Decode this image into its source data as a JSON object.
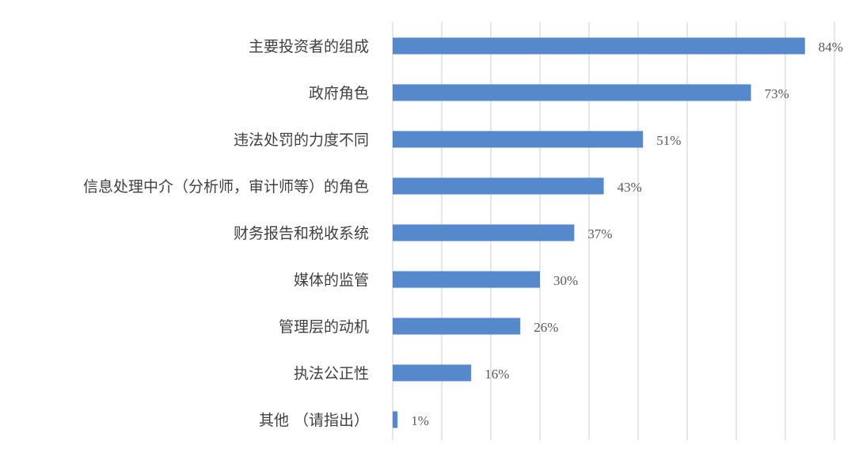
{
  "chart_data": {
    "type": "bar",
    "orientation": "horizontal",
    "categories": [
      "主要投资者的组成",
      "政府角色",
      "违法处罚的力度不同",
      "信息处理中介（分析师，审计师等）的角色",
      "财务报告和税收系统",
      "媒体的监管",
      "管理层的动机",
      "执法公正性",
      "其他 （请指出）"
    ],
    "values": [
      84,
      73,
      51,
      43,
      37,
      30,
      26,
      16,
      1
    ],
    "data_labels": [
      "84%",
      "73%",
      "51%",
      "43%",
      "37%",
      "30%",
      "26%",
      "16%",
      "1%"
    ],
    "unit": "%",
    "xlim": [
      0,
      90
    ],
    "x_gridlines_every": 10,
    "grid": true,
    "x_tick_labels_shown": false,
    "legend": "none",
    "bar_color": "#5689CB",
    "grid_color": "#E6E6E6"
  }
}
